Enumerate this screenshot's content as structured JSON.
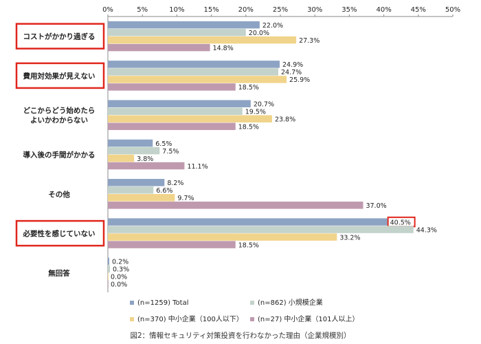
{
  "chart_data": {
    "type": "bar",
    "orientation": "horizontal",
    "categories": [
      "コストがかかり過ぎる",
      "費用対効果が見えない",
      "どこからどう始めたら\nよいかわからない",
      "導入後の手間がかかる",
      "その他",
      "必要性を感じていない",
      "無回答"
    ],
    "highlighted_categories": [
      0,
      1,
      5
    ],
    "series": [
      {
        "name": "(n=1259) Total",
        "color": "#8da3c3",
        "values": [
          22.0,
          24.9,
          20.7,
          6.5,
          8.2,
          40.5,
          0.2
        ]
      },
      {
        "name": "(n=862) 小規模企業",
        "color": "#c3d3cb",
        "values": [
          20.0,
          24.7,
          19.5,
          7.5,
          6.6,
          44.3,
          0.3
        ]
      },
      {
        "name": "(n=370) 中小企業（100人以下）",
        "color": "#f1d48b",
        "values": [
          27.3,
          25.9,
          23.8,
          3.8,
          9.7,
          33.2,
          0.0
        ]
      },
      {
        "name": "(n=27) 中小企業（101人以上）",
        "color": "#bf9aae",
        "values": [
          14.8,
          18.5,
          18.5,
          11.1,
          37.0,
          18.5,
          0.0
        ]
      }
    ],
    "value_labels": [
      [
        "22.0%",
        "24.9%",
        "20.7%",
        "6.5%",
        "8.2%",
        "40.5%",
        "0.2%"
      ],
      [
        "20.0%",
        "24.7%",
        "19.5%",
        "7.5%",
        "6.6%",
        "44.3%",
        "0.3%"
      ],
      [
        "27.3%",
        "25.9%",
        "23.8%",
        "3.8%",
        "9.7%",
        "33.2%",
        "0.0%"
      ],
      [
        "14.8%",
        "18.5%",
        "18.5%",
        "11.1%",
        "37.0%",
        "18.5%",
        "0.0%"
      ]
    ],
    "highlighted_value": {
      "series": 0,
      "category": 5
    },
    "xlim": [
      0,
      50
    ],
    "x_ticks": [
      "0%",
      "5%",
      "10%",
      "15%",
      "20%",
      "25%",
      "30%",
      "35%",
      "40%",
      "45%",
      "50%"
    ],
    "axis_position": "top",
    "gridlines": false,
    "legend_position": "bottom",
    "highlight_color": "#e0261c"
  },
  "caption": "図2：情報セキュリティ対策投資を行わなかった理由（企業規模別）"
}
